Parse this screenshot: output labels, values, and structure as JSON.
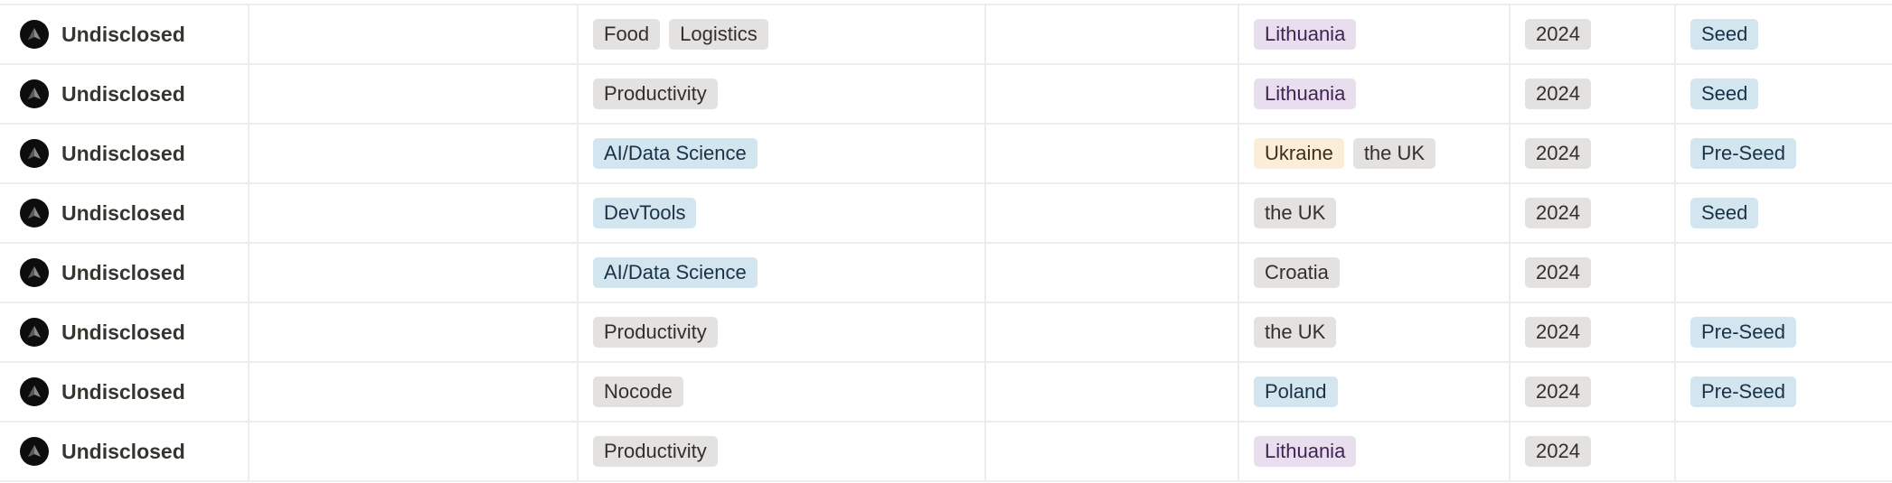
{
  "colors": {
    "gray": "#e3e2e0",
    "blue": "#d3e5ef",
    "purple": "#e8deee",
    "yellow": "#fbeed8"
  },
  "rows": [
    {
      "name": "Undisclosed",
      "industries": [
        {
          "label": "Food",
          "color": "gray"
        },
        {
          "label": "Logistics",
          "color": "gray"
        }
      ],
      "countries": [
        {
          "label": "Lithuania",
          "color": "purple"
        }
      ],
      "year": "2024",
      "stage": {
        "label": "Seed",
        "color": "blue"
      }
    },
    {
      "name": "Undisclosed",
      "industries": [
        {
          "label": "Productivity",
          "color": "gray"
        }
      ],
      "countries": [
        {
          "label": "Lithuania",
          "color": "purple"
        }
      ],
      "year": "2024",
      "stage": {
        "label": "Seed",
        "color": "blue"
      }
    },
    {
      "name": "Undisclosed",
      "industries": [
        {
          "label": "AI/Data Science",
          "color": "blue"
        }
      ],
      "countries": [
        {
          "label": "Ukraine",
          "color": "yellow"
        },
        {
          "label": "the UK",
          "color": "gray"
        }
      ],
      "year": "2024",
      "stage": {
        "label": "Pre-Seed",
        "color": "blue"
      }
    },
    {
      "name": "Undisclosed",
      "industries": [
        {
          "label": "DevTools",
          "color": "blue"
        }
      ],
      "countries": [
        {
          "label": "the UK",
          "color": "gray"
        }
      ],
      "year": "2024",
      "stage": {
        "label": "Seed",
        "color": "blue"
      }
    },
    {
      "name": "Undisclosed",
      "industries": [
        {
          "label": "AI/Data Science",
          "color": "blue"
        }
      ],
      "countries": [
        {
          "label": "Croatia",
          "color": "gray"
        }
      ],
      "year": "2024",
      "stage": null
    },
    {
      "name": "Undisclosed",
      "industries": [
        {
          "label": "Productivity",
          "color": "gray"
        }
      ],
      "countries": [
        {
          "label": "the UK",
          "color": "gray"
        }
      ],
      "year": "2024",
      "stage": {
        "label": "Pre-Seed",
        "color": "blue"
      }
    },
    {
      "name": "Undisclosed",
      "industries": [
        {
          "label": "Nocode",
          "color": "gray"
        }
      ],
      "countries": [
        {
          "label": "Poland",
          "color": "blue"
        }
      ],
      "year": "2024",
      "stage": {
        "label": "Pre-Seed",
        "color": "blue"
      }
    },
    {
      "name": "Undisclosed",
      "industries": [
        {
          "label": "Productivity",
          "color": "gray"
        }
      ],
      "countries": [
        {
          "label": "Lithuania",
          "color": "purple"
        }
      ],
      "year": "2024",
      "stage": null
    }
  ]
}
